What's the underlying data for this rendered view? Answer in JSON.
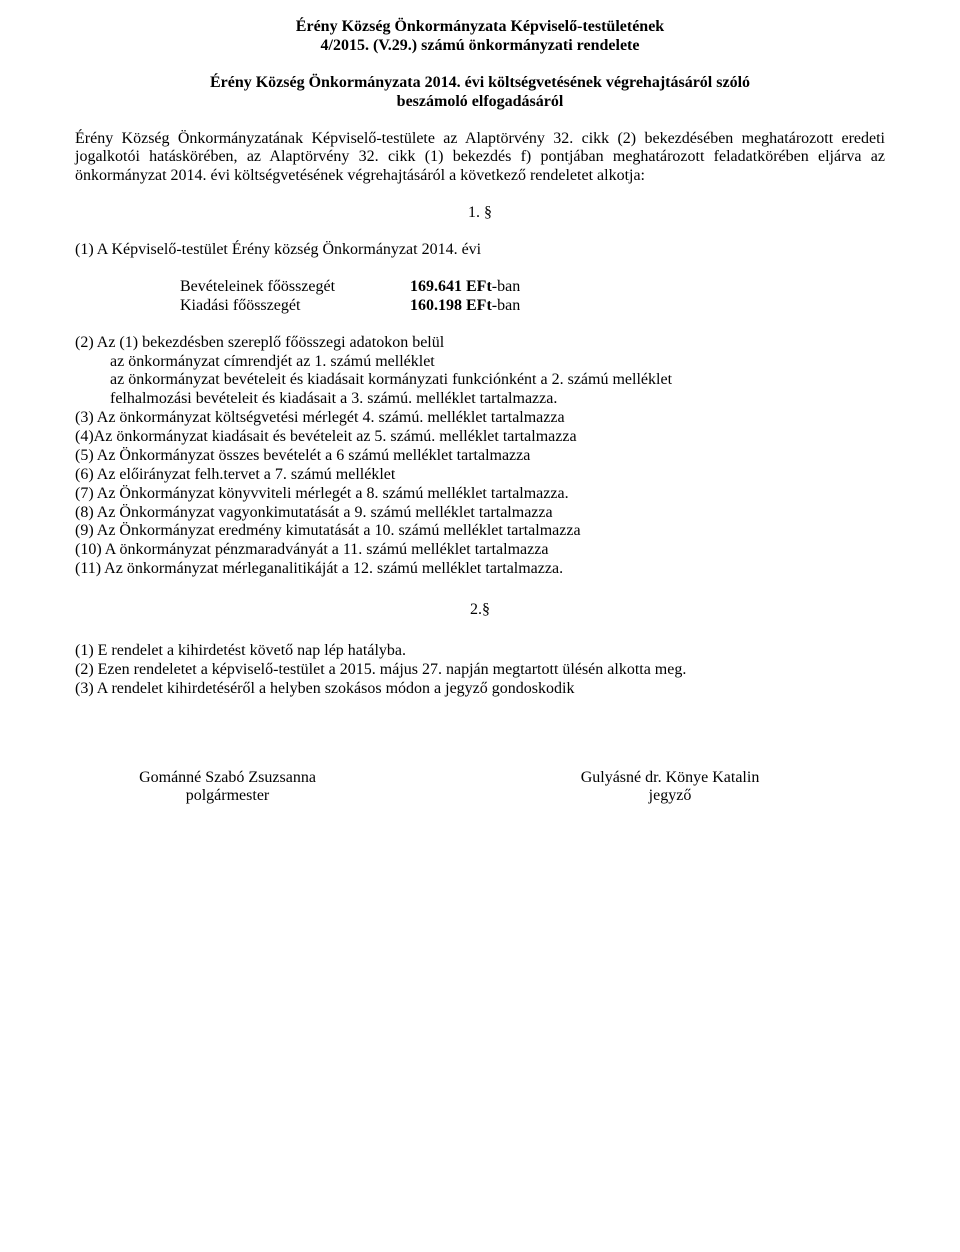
{
  "title": {
    "line1": "Érény Község Önkormányzata Képviselő-testületének",
    "line2": "4/2015. (V.29.) számú önkormányzati rendelete"
  },
  "subtitle": {
    "line1": "Érény Község Önkormányzata 2014. évi költségvetésének végrehajtásáról szóló",
    "line2": "beszámoló elfogadásáról"
  },
  "preamble": "Érény Község Önkormányzatának Képviselő-testülete az Alaptörvény 32. cikk (2) bekezdésében meghatározott eredeti jogalkotói hatáskörében, az Alaptörvény 32. cikk (1) bekezdés f) pontjában meghatározott feladatkörében eljárva az önkormányzat 2014. évi költségvetésének végrehajtásáról a következő rendeletet alkotja:",
  "section1": "1. §",
  "para1": "(1) A Képviselő-testület Érény község Önkormányzat 2014. évi",
  "amounts": {
    "income_label": "Bevételeinek főösszegét",
    "income_value": "169.641 EFt",
    "income_suffix": "-ban",
    "expense_label": "Kiadási főösszegét",
    "expense_value": "160.198 EFt",
    "expense_suffix": "-ban"
  },
  "list": {
    "l0": "(2) Az (1) bekezdésben szereplő főösszegi adatokon belül",
    "l1": "az önkormányzat címrendjét az 1. számú melléklet",
    "l2": "az önkormányzat  bevételeit és kiadásait kormányzati funkciónként a 2. számú melléklet",
    "l3": "felhalmozási bevételeit és kiadásait a 3. számú. melléklet tartalmazza.",
    "l4": "(3) Az önkormányzat költségvetési mérlegét 4. számú. melléklet tartalmazza",
    "l5": "(4)Az önkormányzat kiadásait és bevételeit az 5. számú. melléklet tartalmazza",
    "l6": "(5) Az Önkormányzat összes bevételét a 6 számú melléklet tartalmazza",
    "l7": "(6) Az előirányzat felh.tervet a 7. számú melléklet",
    "l8": "(7) Az Önkormányzat könyvviteli mérlegét a 8. számú melléklet tartalmazza.",
    "l9": "(8) Az Önkormányzat vagyonkimutatását a 9. számú melléklet tartalmazza",
    "l10": "(9) Az Önkormányzat eredmény kimutatását a 10. számú melléklet tartalmazza",
    "l11": "(10) A önkormányzat pénzmaradványát a 11. számú melléklet tartalmazza",
    "l12": "(11) Az önkormányzat mérleganalitikáját a 12. számú melléklet tartalmazza."
  },
  "section2": "2.§",
  "closing": {
    "c1": "(1) E rendelet a kihirdetést követő nap lép hatályba.",
    "c2": "(2) Ezen rendeletet a képviselő-testület a 2015. május 27. napján megtartott ülésén alkotta meg.",
    "c3": "(3) A rendelet kihirdetéséről a helyben szokásos módon a jegyző gondoskodik"
  },
  "sign": {
    "left_name": "Gománné Szabó Zsuzsanna",
    "left_title": "polgármester",
    "right_name": "Gulyásné dr. Könye Katalin",
    "right_title": "jegyző"
  }
}
